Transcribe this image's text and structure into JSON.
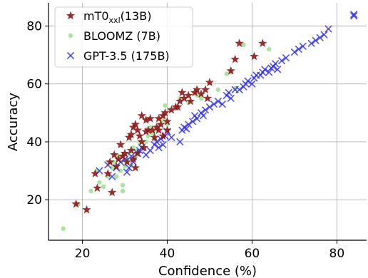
{
  "chart_data": {
    "type": "scatter",
    "xlabel": "Confidence (%)",
    "ylabel": "Accuracy",
    "xlim": [
      12,
      87
    ],
    "ylim": [
      6,
      88
    ],
    "xticks": [
      20,
      40,
      60,
      80
    ],
    "yticks": [
      20,
      40,
      60,
      80
    ],
    "grid": true,
    "legend_position": "top-left",
    "series": [
      {
        "name": "mT0",
        "name_subscript": "xxl",
        "name_suffix": "(13B)",
        "marker": "star",
        "color": "#8b1a1a",
        "points": [
          [
            18.5,
            18.5
          ],
          [
            21,
            16.5
          ],
          [
            23,
            29
          ],
          [
            23.5,
            24
          ],
          [
            26,
            29
          ],
          [
            26.5,
            33
          ],
          [
            27,
            22.5
          ],
          [
            27.5,
            35.5
          ],
          [
            28,
            31.5
          ],
          [
            28.5,
            34
          ],
          [
            29,
            39
          ],
          [
            29.5,
            35
          ],
          [
            30,
            36
          ],
          [
            30.5,
            33
          ],
          [
            31,
            41.5
          ],
          [
            31.5,
            42.5
          ],
          [
            31.5,
            37
          ],
          [
            32,
            45
          ],
          [
            32,
            34
          ],
          [
            32.5,
            46
          ],
          [
            32.5,
            31
          ],
          [
            33,
            44
          ],
          [
            33,
            36
          ],
          [
            33.5,
            42
          ],
          [
            34,
            49
          ],
          [
            34,
            40
          ],
          [
            34.5,
            38
          ],
          [
            35,
            43.5
          ],
          [
            35,
            47.5
          ],
          [
            35.5,
            44
          ],
          [
            36,
            48
          ],
          [
            36.5,
            44
          ],
          [
            37,
            41.5
          ],
          [
            37.5,
            45
          ],
          [
            38,
            44
          ],
          [
            38,
            48
          ],
          [
            38.5,
            46
          ],
          [
            39,
            42
          ],
          [
            39,
            49
          ],
          [
            39.5,
            50
          ],
          [
            40,
            47
          ],
          [
            40,
            44
          ],
          [
            41,
            51
          ],
          [
            42,
            52
          ],
          [
            42.5,
            52
          ],
          [
            43,
            54
          ],
          [
            43.5,
            57
          ],
          [
            44,
            55
          ],
          [
            45,
            56
          ],
          [
            45.5,
            54
          ],
          [
            46.5,
            57
          ],
          [
            47,
            58
          ],
          [
            48,
            56.5
          ],
          [
            49,
            58
          ],
          [
            49.5,
            55
          ],
          [
            50,
            60.5
          ],
          [
            55,
            64.5
          ],
          [
            56,
            68.5
          ],
          [
            57,
            74
          ],
          [
            60.5,
            69.5
          ],
          [
            62.5,
            74
          ]
        ]
      },
      {
        "name": "BLOOMZ (7B)",
        "marker": "circle",
        "color": "#a8e6a0",
        "points": [
          [
            15.5,
            10
          ],
          [
            19,
            18.5
          ],
          [
            22,
            23
          ],
          [
            23.5,
            30
          ],
          [
            24,
            26
          ],
          [
            25,
            24.5
          ],
          [
            26,
            28
          ],
          [
            27,
            31
          ],
          [
            27.5,
            33
          ],
          [
            28,
            28
          ],
          [
            28.5,
            35
          ],
          [
            29,
            30
          ],
          [
            29.5,
            23
          ],
          [
            29.5,
            25
          ],
          [
            30,
            31.5
          ],
          [
            30.5,
            34
          ],
          [
            31,
            36
          ],
          [
            31.5,
            32
          ],
          [
            32,
            38
          ],
          [
            32.5,
            35
          ],
          [
            33,
            37
          ],
          [
            33.5,
            40
          ],
          [
            34,
            38
          ],
          [
            35,
            40
          ],
          [
            35.5,
            42
          ],
          [
            36,
            45
          ],
          [
            36.5,
            43
          ],
          [
            37,
            41
          ],
          [
            37.5,
            44
          ],
          [
            38,
            45.5
          ],
          [
            39,
            47.5
          ],
          [
            39.5,
            52.5
          ],
          [
            40,
            46
          ],
          [
            40.5,
            51
          ],
          [
            43,
            55
          ],
          [
            45,
            53.5
          ],
          [
            47,
            56
          ],
          [
            48,
            55
          ],
          [
            52,
            58
          ],
          [
            54,
            63.5
          ],
          [
            55,
            64
          ],
          [
            56,
            58.5
          ],
          [
            58,
            73.5
          ],
          [
            64,
            72
          ]
        ]
      },
      {
        "name": "GPT-3.5 (175B)",
        "marker": "x",
        "color": "#3333ee",
        "points": [
          [
            24,
            30
          ],
          [
            26,
            32
          ],
          [
            27,
            28
          ],
          [
            28,
            31
          ],
          [
            29,
            33
          ],
          [
            30,
            34
          ],
          [
            30.5,
            29.5
          ],
          [
            31,
            31
          ],
          [
            31.5,
            35
          ],
          [
            32,
            33
          ],
          [
            33,
            36
          ],
          [
            33.5,
            37
          ],
          [
            34,
            38
          ],
          [
            35,
            35.5
          ],
          [
            36,
            37
          ],
          [
            37,
            39
          ],
          [
            37.5,
            40
          ],
          [
            38,
            38
          ],
          [
            38.5,
            41
          ],
          [
            39,
            39
          ],
          [
            39.5,
            42
          ],
          [
            40,
            43.5
          ],
          [
            41,
            41.5
          ],
          [
            43,
            40
          ],
          [
            43.5,
            44
          ],
          [
            44,
            45
          ],
          [
            44.5,
            44.5
          ],
          [
            45,
            46
          ],
          [
            46,
            47
          ],
          [
            46.5,
            49
          ],
          [
            47,
            48
          ],
          [
            48,
            50
          ],
          [
            48.5,
            49
          ],
          [
            49,
            51
          ],
          [
            50,
            52
          ],
          [
            51,
            53
          ],
          [
            52,
            54
          ],
          [
            53,
            53
          ],
          [
            54,
            56
          ],
          [
            54.5,
            57
          ],
          [
            55,
            55
          ],
          [
            56,
            58
          ],
          [
            57,
            58
          ],
          [
            58,
            59
          ],
          [
            58.5,
            60
          ],
          [
            59,
            61
          ],
          [
            60,
            60
          ],
          [
            60.5,
            62
          ],
          [
            61,
            63
          ],
          [
            62,
            63
          ],
          [
            62.5,
            64
          ],
          [
            63,
            65
          ],
          [
            64,
            64
          ],
          [
            64.5,
            65.5
          ],
          [
            65,
            66
          ],
          [
            65.5,
            67
          ],
          [
            66,
            65
          ],
          [
            67,
            68
          ],
          [
            68,
            69
          ],
          [
            70,
            71
          ],
          [
            71,
            72
          ],
          [
            72,
            73
          ],
          [
            74,
            74
          ],
          [
            75,
            75
          ],
          [
            76,
            76
          ],
          [
            77,
            77
          ],
          [
            78,
            79
          ],
          [
            84,
            84
          ],
          [
            84,
            83.5
          ]
        ]
      }
    ]
  }
}
